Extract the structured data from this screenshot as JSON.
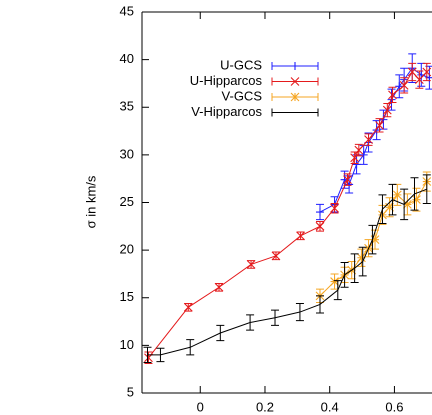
{
  "chart_data": {
    "type": "line",
    "y_label": "σ in km/s",
    "xlim": [
      -0.18,
      0.713
    ],
    "ylim": [
      5,
      45
    ],
    "xticks": [
      0,
      0.2,
      0.4,
      0.6
    ],
    "yticks": [
      5,
      10,
      15,
      20,
      25,
      30,
      35,
      40,
      45
    ],
    "legend": "upper left",
    "series": [
      {
        "name": "U-GCS",
        "color": "#1f1fff",
        "marker": "plus",
        "x": [
          0.37,
          0.415,
          0.446,
          0.46,
          0.483,
          0.505,
          0.52,
          0.545,
          0.566,
          0.591,
          0.615,
          0.63,
          0.655,
          0.683,
          0.708
        ],
        "values": [
          24.0,
          24.8,
          27.4,
          26.9,
          29.0,
          30.0,
          31.3,
          32.6,
          33.7,
          35.8,
          37.2,
          37.9,
          39.1,
          38.4,
          38.1
        ],
        "errors": [
          0.8,
          0.8,
          0.9,
          0.9,
          1.0,
          1.0,
          1.0,
          1.0,
          1.0,
          1.1,
          1.2,
          1.2,
          1.5,
          1.2,
          1.2
        ]
      },
      {
        "name": "U-Hipparcos",
        "color": "#e41a1c",
        "marker": "cross",
        "x": [
          -0.16,
          -0.037,
          0.058,
          0.157,
          0.234,
          0.31,
          0.37,
          0.415,
          0.455,
          0.477,
          0.49,
          0.52,
          0.554,
          0.578,
          0.594,
          0.63,
          0.655,
          0.677,
          0.7
        ],
        "values": [
          8.7,
          14.0,
          16.1,
          18.5,
          19.4,
          21.5,
          22.5,
          24.4,
          27.4,
          29.7,
          30.5,
          31.6,
          33.1,
          34.7,
          36.3,
          37.3,
          38.7,
          37.9,
          38.7
        ],
        "errors": [
          0.6,
          0.4,
          0.4,
          0.4,
          0.4,
          0.4,
          0.5,
          0.5,
          0.6,
          0.6,
          0.6,
          0.6,
          0.7,
          0.7,
          0.8,
          0.8,
          0.9,
          0.9,
          0.9
        ]
      },
      {
        "name": "V-GCS",
        "color": "#f5a623",
        "marker": "star",
        "x": [
          0.37,
          0.415,
          0.446,
          0.468,
          0.498,
          0.52,
          0.54,
          0.563,
          0.585,
          0.609,
          0.64,
          0.668,
          0.7
        ],
        "values": [
          15.2,
          16.7,
          17.4,
          17.9,
          19.2,
          20.2,
          21.1,
          23.7,
          24.5,
          25.8,
          24.8,
          25.3,
          27.2
        ],
        "errors": [
          0.7,
          0.8,
          0.8,
          0.9,
          0.9,
          0.9,
          1.0,
          1.0,
          1.0,
          1.1,
          1.1,
          1.2,
          1.0
        ]
      },
      {
        "name": "V-Hipparcos",
        "color": "#000000",
        "marker": "none",
        "x": [
          -0.163,
          -0.123,
          -0.031,
          0.062,
          0.154,
          0.231,
          0.308,
          0.37,
          0.425,
          0.446,
          0.477,
          0.502,
          0.532,
          0.563,
          0.594,
          0.63,
          0.662,
          0.7
        ],
        "values": [
          9.0,
          9.0,
          9.8,
          11.3,
          12.4,
          12.9,
          13.5,
          14.3,
          15.8,
          17.4,
          18.1,
          18.8,
          21.1,
          24.3,
          25.3,
          24.8,
          25.9,
          26.4
        ],
        "errors": [
          0.8,
          0.7,
          0.8,
          0.8,
          0.8,
          0.8,
          0.9,
          0.9,
          1.0,
          1.3,
          1.5,
          1.5,
          1.5,
          1.5,
          1.6,
          1.6,
          1.7,
          1.5
        ]
      }
    ]
  }
}
